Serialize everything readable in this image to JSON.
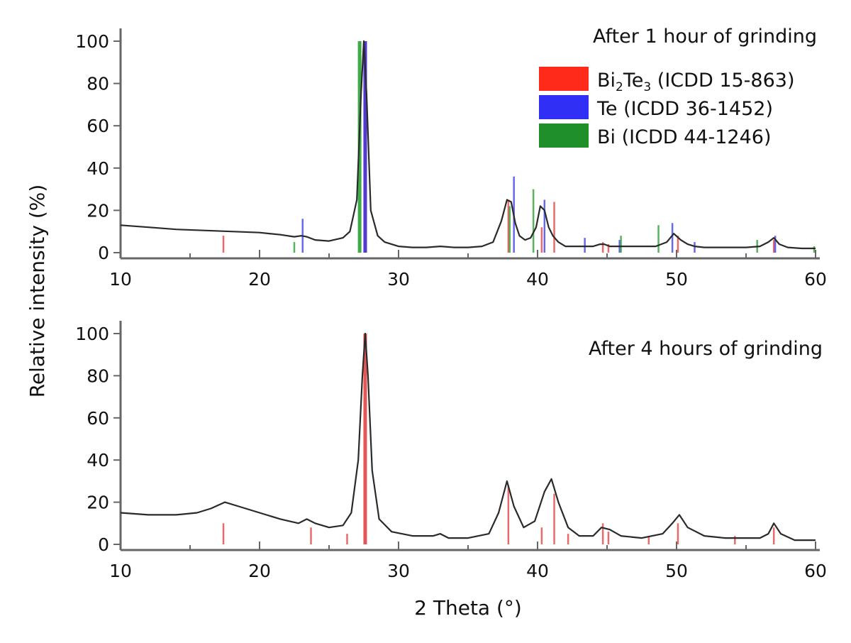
{
  "chart_data": [
    {
      "type": "line",
      "annotation": "After 1 hour of grinding",
      "xlim": [
        10,
        60
      ],
      "ylim": [
        0,
        100
      ],
      "x_ticks": [
        10,
        20,
        30,
        40,
        50,
        60
      ],
      "y_ticks": [
        0,
        20,
        40,
        60,
        80,
        100
      ],
      "legend": [
        {
          "formula": "Bi",
          "sub1": "2",
          "mid": "Te",
          "sub2": "3",
          "ref": " (ICDD 15-863)",
          "color": "#ff2a1a"
        },
        {
          "formula": "Te",
          "sub1": "",
          "mid": "",
          "sub2": "",
          "ref": " (ICDD 36-1452)",
          "color": "#2f2ff5"
        },
        {
          "formula": "Bi",
          "sub1": "",
          "mid": "",
          "sub2": "",
          "ref": " (ICDD 44-1246)",
          "color": "#1f8f2a"
        }
      ],
      "pattern": {
        "x": [
          10,
          12,
          14,
          16,
          18,
          20,
          21.5,
          22.5,
          23.0,
          23.4,
          24,
          25,
          26,
          26.5,
          27.0,
          27.3,
          27.5,
          27.7,
          28.0,
          28.5,
          29,
          30,
          31,
          32,
          33,
          34,
          35,
          36,
          36.8,
          37.4,
          37.8,
          38.1,
          38.4,
          38.7,
          39.1,
          39.5,
          39.9,
          40.2,
          40.5,
          40.8,
          41.1,
          41.5,
          42,
          43,
          44,
          44.5,
          44.8,
          45.2,
          45.8,
          46.5,
          47.5,
          48.5,
          49.3,
          49.8,
          50.3,
          50.8,
          51.3,
          52,
          53,
          54,
          55,
          56,
          56.6,
          57.0,
          57.4,
          58,
          59,
          60
        ],
        "y": [
          13,
          12,
          11,
          10.5,
          10,
          9.5,
          8.5,
          7.5,
          8,
          7.5,
          6,
          5.5,
          7,
          10,
          25,
          75,
          100,
          75,
          20,
          8,
          5,
          3,
          2.5,
          2.5,
          3,
          2.5,
          2.5,
          3,
          5,
          15,
          25,
          24,
          14,
          8,
          6,
          7,
          12,
          22,
          20,
          12,
          8,
          5,
          3,
          3,
          3,
          4,
          4,
          3,
          3,
          3,
          3,
          3,
          5,
          9,
          6,
          4,
          3,
          2.5,
          2.5,
          2.5,
          2.5,
          3,
          5,
          7,
          4,
          2.5,
          2,
          2
        ]
      },
      "reference_lines": {
        "Bi2Te3": {
          "x": [
            17.4,
            27.6,
            37.9,
            40.3,
            41.2,
            44.7,
            45.1,
            50.1,
            57.0
          ],
          "y": [
            8,
            100,
            25,
            12,
            24,
            5,
            4,
            8,
            6
          ]
        },
        "Te": {
          "x": [
            23.1,
            27.6,
            38.3,
            40.5,
            43.4,
            45.9,
            49.7,
            51.3,
            57.1
          ],
          "y": [
            16,
            100,
            36,
            25,
            7,
            6,
            14,
            5,
            8
          ]
        },
        "Bi": {
          "x": [
            22.5,
            27.2,
            38.0,
            39.7,
            46.0,
            48.7,
            55.8,
            59.9
          ],
          "y": [
            5,
            100,
            22,
            30,
            8,
            13,
            6,
            3
          ]
        }
      }
    },
    {
      "type": "line",
      "annotation": "After 4 hours of grinding",
      "xlim": [
        10,
        60
      ],
      "ylim": [
        0,
        100
      ],
      "x_ticks": [
        10,
        20,
        30,
        40,
        50,
        60
      ],
      "y_ticks": [
        0,
        20,
        40,
        60,
        80,
        100
      ],
      "pattern": {
        "x": [
          10,
          12,
          14,
          15.5,
          16.5,
          17.5,
          18.5,
          20,
          21.5,
          22.8,
          23.4,
          24,
          25,
          26,
          26.6,
          27.1,
          27.4,
          27.6,
          27.8,
          28.1,
          28.6,
          29.5,
          31,
          32.5,
          33,
          33.6,
          35,
          36.5,
          37.2,
          37.8,
          38.3,
          39,
          39.8,
          40.5,
          41.0,
          41.5,
          42.2,
          43,
          44,
          44.6,
          45.2,
          46,
          47.5,
          49,
          49.7,
          50.2,
          50.8,
          52,
          53.5,
          54.5,
          56,
          56.6,
          57.0,
          57.5,
          58.5,
          60
        ],
        "y": [
          15,
          14,
          14,
          15,
          17,
          20,
          18,
          15,
          12,
          10,
          12,
          10,
          8,
          9,
          15,
          40,
          80,
          100,
          80,
          35,
          12,
          6,
          4,
          4,
          5,
          3,
          3,
          5,
          15,
          30,
          18,
          8,
          11,
          25,
          31,
          20,
          8,
          4,
          4,
          8,
          7,
          4,
          3,
          5,
          10,
          14,
          8,
          4,
          3,
          3,
          3,
          5,
          10,
          5,
          2,
          2
        ]
      },
      "reference_lines": {
        "Bi2Te3": {
          "x": [
            17.4,
            23.7,
            26.3,
            27.6,
            37.9,
            40.3,
            41.2,
            42.2,
            44.7,
            45.1,
            48.0,
            50.1,
            54.2,
            57.0
          ],
          "y": [
            10,
            8,
            5,
            100,
            28,
            8,
            24,
            5,
            10,
            6,
            4,
            10,
            4,
            8
          ]
        }
      }
    }
  ],
  "axes": {
    "ylabel": "Relative intensity (%)",
    "xlabel": "2 Theta (°)"
  }
}
